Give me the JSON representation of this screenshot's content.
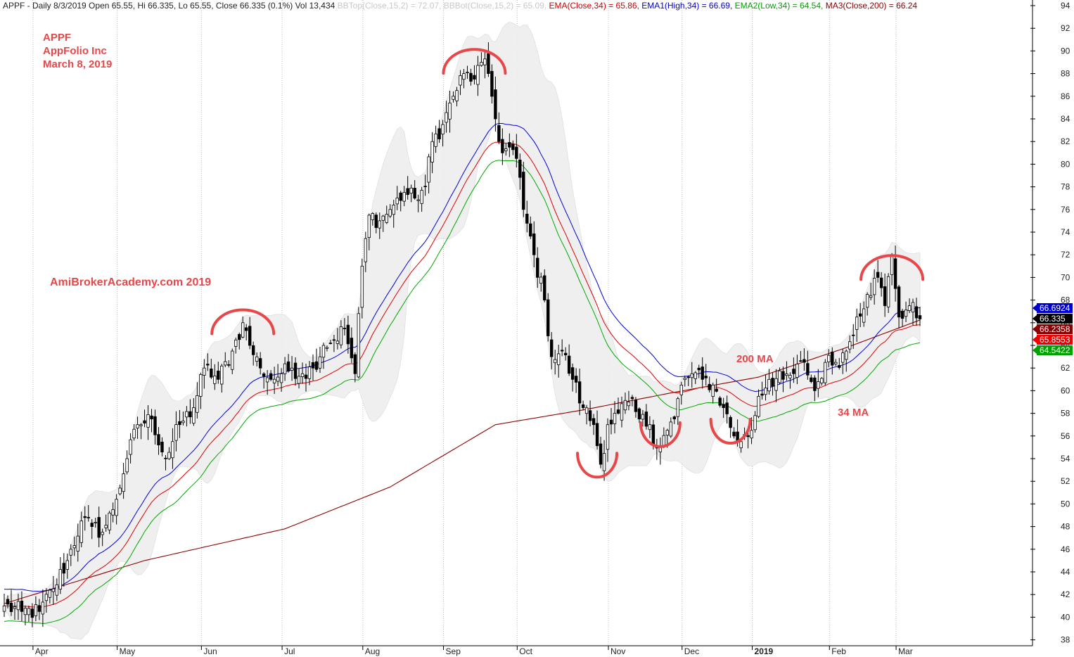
{
  "header": {
    "segments": [
      {
        "text": "APPF - Daily 8/3/2019 Open 65.55, Hi 66.335, Lo 65.55, Close 66.335 (0.1%) Vol 13,434 ",
        "color": "#222222"
      },
      {
        "text": "BBTop(Close,15,2) = 72.07, BBBot(Close,15,2) = 65.09, ",
        "color": "#c8c8c8"
      },
      {
        "text": "EMA(Close,34) = 65.86, ",
        "color": "#d00000"
      },
      {
        "text": "EMA1(High,34) = 66.69, ",
        "color": "#0000cc"
      },
      {
        "text": "EMA2(Low,34) = 64.54, ",
        "color": "#00a000"
      },
      {
        "text": "MA3(Close,200) = 66.24",
        "color": "#8b0000"
      }
    ]
  },
  "title_block": {
    "line1": "APPF",
    "line2": "AppFolio Inc",
    "line3": "March 8, 2019",
    "watermark": "AmiBrokerAcademy.com  2019",
    "color": "#e8474a"
  },
  "annotations": {
    "ma200": "200 MA",
    "ma34": "34 MA"
  },
  "value_tags": [
    {
      "text": "66.6924",
      "value": 66.6924,
      "bg": "#0000cc",
      "fg": "#ffffff"
    },
    {
      "text": "66.335",
      "value": 66.335,
      "bg": "#000000",
      "fg": "#ffffff"
    },
    {
      "text": "66.2358",
      "value": 66.2358,
      "bg": "#8b0000",
      "fg": "#ffffff"
    },
    {
      "text": "65.8553",
      "value": 65.8553,
      "bg": "#ee0000",
      "fg": "#ffffff"
    },
    {
      "text": "64.5422",
      "value": 64.5422,
      "bg": "#00a000",
      "fg": "#ffffff"
    }
  ],
  "chart_data": {
    "type": "candlestick",
    "ylim": [
      37,
      95
    ],
    "y_ticks": [
      38,
      40,
      42,
      44,
      46,
      48,
      50,
      52,
      54,
      56,
      58,
      60,
      62,
      64,
      66,
      68,
      70,
      72,
      74,
      76,
      78,
      80,
      82,
      84,
      86,
      88,
      90,
      92,
      94
    ],
    "x_labels": [
      {
        "text": "Apr",
        "day": 9,
        "bold": false
      },
      {
        "text": "May",
        "day": 33,
        "bold": false
      },
      {
        "text": "Jun",
        "day": 57,
        "bold": false
      },
      {
        "text": "Jul",
        "day": 80,
        "bold": false
      },
      {
        "text": "Aug",
        "day": 103,
        "bold": false
      },
      {
        "text": "Sep",
        "day": 126,
        "bold": false
      },
      {
        "text": "Oct",
        "day": 147,
        "bold": false
      },
      {
        "text": "Nov",
        "day": 173,
        "bold": false
      },
      {
        "text": "Dec",
        "day": 194,
        "bold": false
      },
      {
        "text": "2019",
        "day": 214,
        "bold": true
      },
      {
        "text": "Feb",
        "day": 236,
        "bold": false
      },
      {
        "text": "Mar",
        "day": 255,
        "bold": false
      }
    ],
    "trading_days": 262,
    "close_anchors": [
      [
        0,
        41.0
      ],
      [
        5,
        40.5
      ],
      [
        10,
        40.5
      ],
      [
        14,
        42.5
      ],
      [
        18,
        45.0
      ],
      [
        22,
        48.5
      ],
      [
        25,
        48.0
      ],
      [
        28,
        47.5
      ],
      [
        31,
        49.5
      ],
      [
        35,
        54.0
      ],
      [
        38,
        57.0
      ],
      [
        42,
        57.5
      ],
      [
        46,
        54.0
      ],
      [
        50,
        57.0
      ],
      [
        54,
        58.5
      ],
      [
        57,
        62.0
      ],
      [
        61,
        61.0
      ],
      [
        65,
        63.5
      ],
      [
        68,
        66.0
      ],
      [
        70,
        64.0
      ],
      [
        73,
        62.0
      ],
      [
        76,
        61.0
      ],
      [
        79,
        61.5
      ],
      [
        82,
        62.0
      ],
      [
        85,
        61.5
      ],
      [
        88,
        62.0
      ],
      [
        91,
        64.0
      ],
      [
        94,
        64.5
      ],
      [
        97,
        65.5
      ],
      [
        100,
        61.5
      ],
      [
        102,
        71.0
      ],
      [
        104,
        75.5
      ],
      [
        107,
        75.0
      ],
      [
        110,
        76.0
      ],
      [
        114,
        77.5
      ],
      [
        117,
        77.0
      ],
      [
        120,
        78.0
      ],
      [
        122,
        82.0
      ],
      [
        125,
        83.5
      ],
      [
        128,
        86.0
      ],
      [
        131,
        88.0
      ],
      [
        134,
        87.5
      ],
      [
        136,
        89.0
      ],
      [
        138,
        88.0
      ],
      [
        140,
        84.0
      ],
      [
        142,
        81.0
      ],
      [
        144,
        81.5
      ],
      [
        146,
        80.5
      ],
      [
        148,
        76.0
      ],
      [
        151,
        72.0
      ],
      [
        154,
        68.0
      ],
      [
        156,
        63.0
      ],
      [
        159,
        63.5
      ],
      [
        162,
        61.0
      ],
      [
        165,
        58.5
      ],
      [
        168,
        57.0
      ],
      [
        170,
        53.5
      ],
      [
        172,
        57.0
      ],
      [
        175,
        58.0
      ],
      [
        178,
        59.0
      ],
      [
        181,
        57.5
      ],
      [
        184,
        57.0
      ],
      [
        186,
        55.0
      ],
      [
        189,
        56.5
      ],
      [
        191,
        57.5
      ],
      [
        193,
        60.5
      ],
      [
        196,
        61.5
      ],
      [
        199,
        61.0
      ],
      [
        202,
        60.5
      ],
      [
        205,
        58.5
      ],
      [
        208,
        56.0
      ],
      [
        210,
        55.5
      ],
      [
        213,
        56.5
      ],
      [
        215,
        59.5
      ],
      [
        218,
        61.0
      ],
      [
        222,
        61.0
      ],
      [
        225,
        61.5
      ],
      [
        228,
        62.5
      ],
      [
        231,
        60.0
      ],
      [
        234,
        62.5
      ],
      [
        237,
        62.5
      ],
      [
        240,
        63.5
      ],
      [
        243,
        66.5
      ],
      [
        246,
        68.5
      ],
      [
        249,
        70.0
      ],
      [
        251,
        67.5
      ],
      [
        253,
        72.0
      ],
      [
        255,
        66.5
      ],
      [
        258,
        67.5
      ],
      [
        261,
        66.335
      ]
    ],
    "series": [
      {
        "name": "BBTop(Close,15,2)",
        "last": 72.07,
        "color": "#c8c8c8"
      },
      {
        "name": "BBBot(Close,15,2)",
        "last": 65.09,
        "color": "#c8c8c8"
      },
      {
        "name": "EMA(Close,34)",
        "last": 65.86,
        "color": "#dd0000"
      },
      {
        "name": "EMA1(High,34)",
        "last": 66.69,
        "color": "#0000dd"
      },
      {
        "name": "EMA2(Low,34)",
        "last": 64.54,
        "color": "#00aa00"
      },
      {
        "name": "MA3(Close,200)",
        "last": 66.24,
        "color": "#8b0000"
      }
    ],
    "ma200_path": [
      [
        0,
        41.2
      ],
      [
        40,
        45.0
      ],
      [
        80,
        47.8
      ],
      [
        110,
        51.5
      ],
      [
        140,
        57.0
      ],
      [
        165,
        58.3
      ],
      [
        190,
        59.8
      ],
      [
        215,
        61.2
      ],
      [
        240,
        63.8
      ],
      [
        261,
        66.24
      ]
    ],
    "grid": "vertical-dotted",
    "pattern_arcs": [
      {
        "shape": "top",
        "day": 68,
        "value": 66.5
      },
      {
        "shape": "top",
        "day": 134,
        "value": 89.5
      },
      {
        "shape": "bottom",
        "day": 169,
        "value": 53.0
      },
      {
        "shape": "bottom",
        "day": 187,
        "value": 55.7
      },
      {
        "shape": "bottom",
        "day": 207,
        "value": 56.0
      },
      {
        "shape": "top",
        "day": 253,
        "value": 71.3
      }
    ]
  }
}
